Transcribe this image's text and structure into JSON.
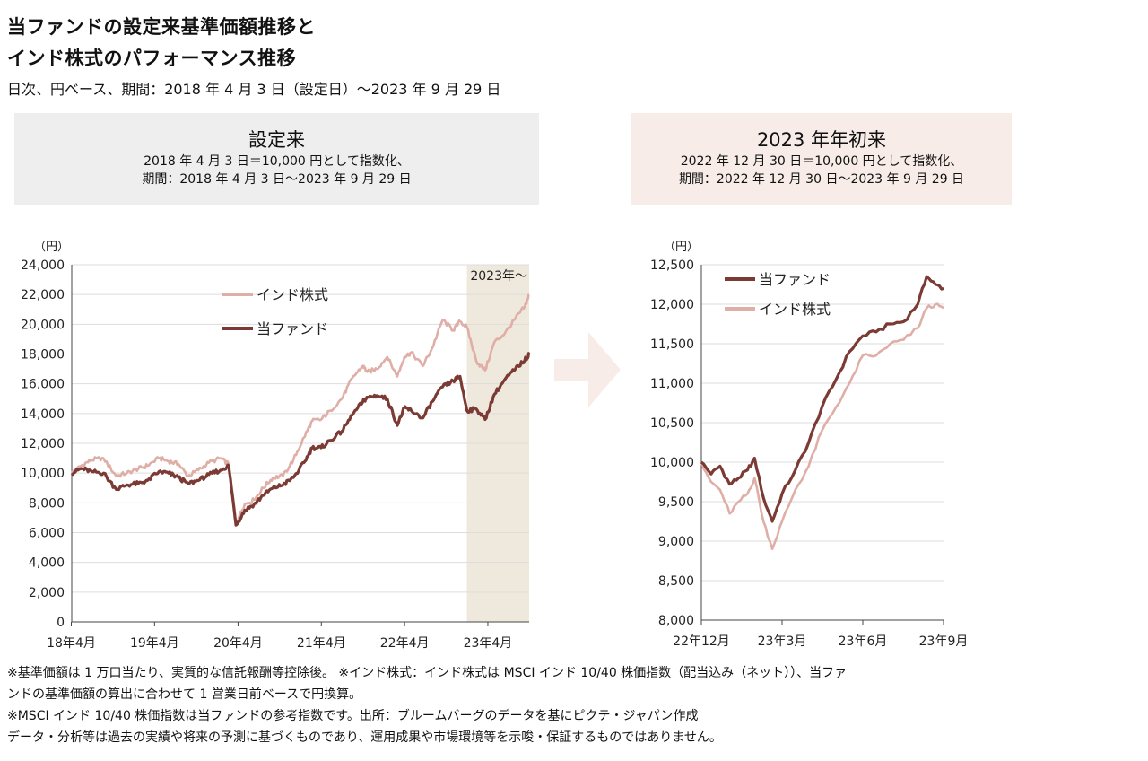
{
  "header": {
    "title_line1": "当ファンドの設定来基準価額推移と",
    "title_line2": "インド株式のパフォーマンス推移",
    "subtitle": "日次、円ベース、期間：2018 年 4 月 3 日（設定日）～2023 年 9 月 29 日"
  },
  "panels": {
    "left": {
      "title": "設定来",
      "line1": "2018 年 4 月 3 日＝10,000 円として指数化、",
      "line2": "期間：2018 年 4 月 3 日～2023 年 9 月 29 日",
      "bg": "#eeeeee"
    },
    "right": {
      "title": "2023 年年初来",
      "line1": "2022 年 12 月 30 日＝10,000 円として指数化、",
      "line2": "期間：2022 年 12 月 30 日～2023 年 9 月 29 日",
      "bg": "#f7ece8"
    }
  },
  "colors": {
    "fund": "#7b3a34",
    "india": "#dfaea6",
    "highlight": "#efe8dc",
    "arrow": "#f7ece8",
    "grid": "#dddddd"
  },
  "notes": {
    "line1": "※基準価額は 1 万口当たり、実質的な信託報酬等控除後。 ※インド株式：インド株式は MSCI インド 10/40 株価指数（配当込み（ネット））、当ファ",
    "line2": "ンドの基準価額の算出に合わせて 1 営業日前ベースで円換算。",
    "line3": "※MSCI インド 10/40 株価指数は当ファンドの参考指数です。出所：ブルームバーグのデータを基にピクテ・ジャパン作成",
    "line4": "データ・分析等は過去の実績や将来の予測に基づくものであり、運用成果や市場環境等を示唆・保証するものではありません。"
  },
  "chart_data": [
    {
      "type": "line",
      "yunit": "（円）",
      "ylim": [
        0,
        24000
      ],
      "yticks": [
        "0",
        "2,000",
        "4,000",
        "6,000",
        "8,000",
        "10,000",
        "12,000",
        "14,000",
        "16,000",
        "18,000",
        "20,000",
        "22,000",
        "24,000"
      ],
      "xlim": [
        "2018-04-03",
        "2023-09-29"
      ],
      "xticks": [
        {
          "date": "2018-04-01",
          "label": "18年4月"
        },
        {
          "date": "2019-04-01",
          "label": "19年4月"
        },
        {
          "date": "2020-04-01",
          "label": "20年4月"
        },
        {
          "date": "2021-04-01",
          "label": "21年4月"
        },
        {
          "date": "2022-04-01",
          "label": "22年4月"
        },
        {
          "date": "2023-04-01",
          "label": "23年4月"
        }
      ],
      "highlight": {
        "from": "2022-12-30",
        "to": "2023-09-29",
        "label": "2023年～"
      },
      "grid": true,
      "legend_position": "top-center",
      "series": [
        {
          "name": "インド株式",
          "color_key": "india",
          "x": [
            "2018-04-03",
            "2018-05-15",
            "2018-07-01",
            "2018-08-20",
            "2018-10-15",
            "2018-11-30",
            "2019-01-20",
            "2019-03-01",
            "2019-04-20",
            "2019-06-01",
            "2019-07-15",
            "2019-08-25",
            "2019-10-10",
            "2019-11-25",
            "2020-01-15",
            "2020-02-20",
            "2020-03-23",
            "2020-04-30",
            "2020-06-10",
            "2020-07-20",
            "2020-09-01",
            "2020-10-15",
            "2020-11-30",
            "2021-01-15",
            "2021-02-20",
            "2021-03-31",
            "2021-05-10",
            "2021-06-30",
            "2021-08-15",
            "2021-09-30",
            "2021-10-20",
            "2021-11-30",
            "2022-01-15",
            "2022-02-28",
            "2022-03-31",
            "2022-04-30",
            "2022-06-20",
            "2022-07-31",
            "2022-09-15",
            "2022-10-31",
            "2022-11-30",
            "2022-12-30",
            "2023-02-10",
            "2023-03-20",
            "2023-04-30",
            "2023-06-15",
            "2023-07-31",
            "2023-09-10",
            "2023-09-29"
          ],
          "y": [
            10000,
            10500,
            10900,
            11000,
            9800,
            10000,
            10300,
            10500,
            11000,
            10800,
            10600,
            9800,
            10200,
            10700,
            11000,
            10600,
            6700,
            7900,
            8200,
            9000,
            9700,
            9800,
            10900,
            12400,
            13500,
            13600,
            14200,
            15000,
            16400,
            17200,
            16800,
            17000,
            17800,
            16500,
            17800,
            18100,
            17200,
            18400,
            20300,
            19600,
            20200,
            19800,
            17500,
            16900,
            18800,
            19400,
            20400,
            21200,
            22000
          ]
        },
        {
          "name": "当ファンド",
          "color_key": "fund",
          "x": [
            "2018-04-03",
            "2018-05-15",
            "2018-07-01",
            "2018-08-20",
            "2018-10-15",
            "2018-11-30",
            "2019-01-20",
            "2019-03-01",
            "2019-04-20",
            "2019-06-01",
            "2019-07-15",
            "2019-08-25",
            "2019-10-10",
            "2019-11-25",
            "2020-01-15",
            "2020-02-20",
            "2020-03-23",
            "2020-04-30",
            "2020-06-10",
            "2020-07-20",
            "2020-09-01",
            "2020-10-15",
            "2020-11-30",
            "2021-01-15",
            "2021-02-20",
            "2021-03-31",
            "2021-05-10",
            "2021-06-30",
            "2021-08-15",
            "2021-09-30",
            "2021-10-20",
            "2021-11-30",
            "2022-01-15",
            "2022-02-28",
            "2022-03-31",
            "2022-04-30",
            "2022-06-20",
            "2022-07-31",
            "2022-09-15",
            "2022-10-31",
            "2022-11-30",
            "2022-12-30",
            "2023-02-10",
            "2023-03-20",
            "2023-04-30",
            "2023-06-15",
            "2023-07-31",
            "2023-09-10",
            "2023-09-29"
          ],
          "y": [
            10000,
            10300,
            10100,
            10000,
            8900,
            9200,
            9300,
            9500,
            10100,
            10000,
            9700,
            9300,
            9500,
            9900,
            10200,
            10500,
            6500,
            7500,
            7900,
            8500,
            9000,
            9200,
            9700,
            10700,
            11700,
            11700,
            12200,
            12800,
            13900,
            14800,
            15100,
            15200,
            15000,
            13200,
            14400,
            14200,
            13700,
            14800,
            15800,
            16200,
            16500,
            14200,
            14300,
            13600,
            15300,
            16300,
            17000,
            17600,
            18000
          ]
        }
      ]
    },
    {
      "type": "line",
      "yunit": "（円）",
      "ylim": [
        8000,
        12500
      ],
      "yticks": [
        "8,000",
        "8,500",
        "9,000",
        "9,500",
        "10,000",
        "10,500",
        "11,000",
        "11,500",
        "12,000",
        "12,500"
      ],
      "xlim": [
        "2022-12-30",
        "2023-09-29"
      ],
      "xticks": [
        {
          "date": "2022-12-30",
          "label": "22年12月"
        },
        {
          "date": "2023-03-31",
          "label": "23年3月"
        },
        {
          "date": "2023-06-30",
          "label": "23年6月"
        },
        {
          "date": "2023-09-29",
          "label": "23年9月"
        }
      ],
      "grid": true,
      "legend_position": "top-left",
      "series": [
        {
          "name": "当ファンド",
          "color_key": "fund",
          "x": [
            "2022-12-30",
            "2023-01-10",
            "2023-01-20",
            "2023-01-31",
            "2023-02-10",
            "2023-02-20",
            "2023-02-28",
            "2023-03-10",
            "2023-03-20",
            "2023-03-31",
            "2023-04-15",
            "2023-04-30",
            "2023-05-15",
            "2023-05-31",
            "2023-06-15",
            "2023-06-30",
            "2023-07-15",
            "2023-07-31",
            "2023-08-15",
            "2023-08-31",
            "2023-09-10",
            "2023-09-20",
            "2023-09-29"
          ],
          "y": [
            10000,
            9850,
            9950,
            9720,
            9800,
            9900,
            10050,
            9550,
            9250,
            9600,
            9900,
            10250,
            10700,
            11050,
            11400,
            11600,
            11650,
            11750,
            11780,
            12000,
            12350,
            12250,
            12200
          ]
        },
        {
          "name": "インド株式",
          "color_key": "india",
          "x": [
            "2022-12-30",
            "2023-01-10",
            "2023-01-20",
            "2023-01-31",
            "2023-02-10",
            "2023-02-20",
            "2023-02-28",
            "2023-03-10",
            "2023-03-20",
            "2023-03-31",
            "2023-04-15",
            "2023-04-30",
            "2023-05-15",
            "2023-05-31",
            "2023-06-15",
            "2023-06-30",
            "2023-07-15",
            "2023-07-31",
            "2023-08-15",
            "2023-08-31",
            "2023-09-10",
            "2023-09-20",
            "2023-09-29"
          ],
          "y": [
            10000,
            9750,
            9650,
            9350,
            9500,
            9600,
            9800,
            9250,
            8900,
            9250,
            9650,
            9950,
            10400,
            10700,
            11000,
            11350,
            11350,
            11500,
            11550,
            11700,
            11950,
            12000,
            11950
          ]
        }
      ]
    }
  ]
}
